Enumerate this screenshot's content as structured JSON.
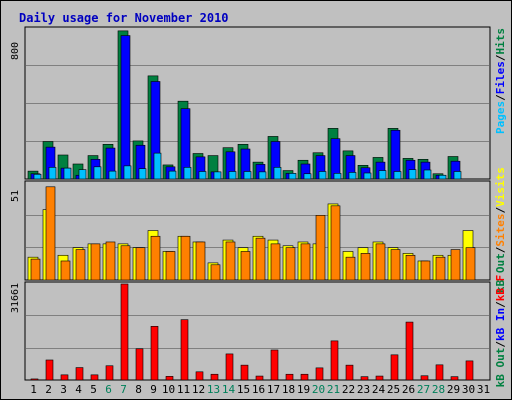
{
  "chart_data": [
    {
      "type": "bar",
      "title": "Daily usage for November 2010",
      "ylabel_max": "800",
      "axis_labels": [
        "Pages",
        "Files",
        "Hits"
      ],
      "ylim": [
        0,
        800
      ],
      "grid": true,
      "categories": [
        "1",
        "2",
        "3",
        "4",
        "5",
        "6",
        "7",
        "8",
        "9",
        "10",
        "11",
        "12",
        "13",
        "14",
        "15",
        "16",
        "17",
        "18",
        "19",
        "20",
        "21",
        "22",
        "23",
        "24",
        "25",
        "26",
        "27",
        "28",
        "29",
        "30",
        "31"
      ],
      "weekend_days": [
        "6",
        "7",
        "13",
        "14",
        "20",
        "21",
        "27",
        "28"
      ],
      "series": [
        {
          "name": "Hits",
          "values": [
            42,
            200,
            128,
            80,
            125,
            185,
            790,
            203,
            550,
            75,
            415,
            136,
            125,
            167,
            185,
            90,
            227,
            45,
            100,
            140,
            270,
            150,
            73,
            115,
            270,
            110,
            105,
            28,
            120,
            0,
            0
          ]
        },
        {
          "name": "Files",
          "values": [
            28,
            170,
            58,
            20,
            105,
            165,
            765,
            180,
            520,
            65,
            375,
            118,
            38,
            145,
            160,
            78,
            200,
            30,
            80,
            125,
            215,
            125,
            60,
            90,
            260,
            100,
            90,
            20,
            95,
            0,
            0
          ]
        },
        {
          "name": "Pages",
          "values": [
            25,
            62,
            58,
            50,
            65,
            42,
            70,
            55,
            138,
            42,
            62,
            40,
            38,
            40,
            40,
            38,
            62,
            30,
            28,
            40,
            30,
            35,
            32,
            45,
            40,
            50,
            48,
            20,
            40,
            0,
            0
          ]
        }
      ]
    },
    {
      "type": "bar",
      "ylabel_max": "51",
      "axis_labels": [
        "Visits",
        "Sites",
        "kB Out"
      ],
      "ylim": [
        0,
        51
      ],
      "grid": true,
      "categories": [
        "1",
        "2",
        "3",
        "4",
        "5",
        "6",
        "7",
        "8",
        "9",
        "10",
        "11",
        "12",
        "13",
        "14",
        "15",
        "16",
        "17",
        "18",
        "19",
        "20",
        "21",
        "22",
        "23",
        "24",
        "25",
        "26",
        "27",
        "28",
        "29",
        "30",
        "31"
      ],
      "series": [
        {
          "name": "Visits",
          "values": [
            12,
            37,
            13,
            17,
            19,
            19,
            19,
            17,
            26,
            15,
            23,
            20,
            9,
            21,
            17,
            23,
            21,
            18,
            20,
            19,
            40,
            15,
            17,
            20,
            17,
            14,
            10,
            13,
            13,
            26,
            0
          ]
        },
        {
          "name": "Sites",
          "values": [
            11,
            49,
            10,
            16,
            19,
            20,
            18,
            17,
            23,
            15,
            23,
            20,
            8,
            20,
            15,
            22,
            19,
            17,
            19,
            34,
            39,
            12,
            14,
            19,
            16,
            13,
            10,
            12,
            16,
            17,
            0
          ]
        }
      ]
    },
    {
      "type": "bar",
      "ylabel_max": "31661",
      "axis_labels": [
        "kB F",
        "kB In",
        "kB Out"
      ],
      "ylim": [
        0,
        31661
      ],
      "grid": true,
      "categories": [
        "1",
        "2",
        "3",
        "4",
        "5",
        "6",
        "7",
        "8",
        "9",
        "10",
        "11",
        "12",
        "13",
        "14",
        "15",
        "16",
        "17",
        "18",
        "19",
        "20",
        "21",
        "22",
        "23",
        "24",
        "25",
        "26",
        "27",
        "28",
        "29",
        "30",
        "31"
      ],
      "series": [
        {
          "name": "kB F",
          "values": [
            350,
            6600,
            1700,
            4100,
            1700,
            4700,
            31661,
            10300,
            17700,
            1200,
            19900,
            2700,
            1900,
            8600,
            4900,
            1300,
            9900,
            1900,
            1900,
            4000,
            12900,
            4900,
            1100,
            1300,
            8300,
            19100,
            1400,
            5000,
            1100,
            6300,
            0
          ]
        }
      ]
    }
  ]
}
